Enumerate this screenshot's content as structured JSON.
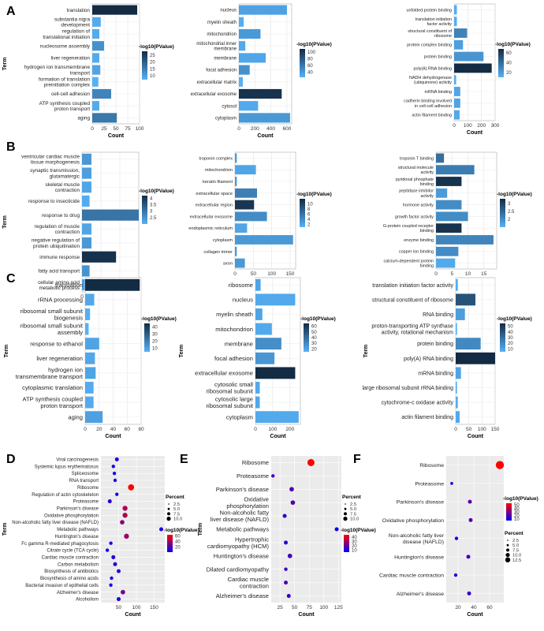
{
  "figure": {
    "panel_letters": [
      "A",
      "B",
      "C",
      "D",
      "E",
      "F"
    ]
  },
  "colors": {
    "bar_low": "#56b1f7",
    "bar_high": "#132b43",
    "dot_low": "#0000ff",
    "dot_high": "#ff0000",
    "panel_bg": "#ebebeb",
    "grid": "#ffffff"
  },
  "chart_data": [
    {
      "id": "A1",
      "panel": "A",
      "type": "bar",
      "orientation": "horizontal",
      "xlabel": "Count",
      "ylabel": "Term",
      "xlim": [
        0,
        100
      ],
      "xticks": [
        0,
        25,
        50,
        75,
        100
      ],
      "legend": {
        "title": "-log10(PValue)",
        "ticks": [
          25,
          20,
          15,
          10
        ],
        "range": [
          7,
          28
        ],
        "placement": "right"
      },
      "categories": [
        "translation",
        "substantia nigra development",
        "regulation of translational initiation",
        "nucleosome assembly",
        "liver regeneration",
        "hydrogen ion transmembrane transport",
        "formation of translation preinitiation complex",
        "cell-cell adhesion",
        "ATP synthesis coupled proton transport",
        "aging"
      ],
      "values": [
        95,
        18,
        15,
        25,
        15,
        17,
        13,
        40,
        15,
        52
      ],
      "color_values": [
        28,
        8,
        8,
        12,
        8,
        9,
        7,
        14,
        8,
        16
      ]
    },
    {
      "id": "A2",
      "panel": "A",
      "type": "bar",
      "orientation": "horizontal",
      "xlabel": "Count",
      "ylabel": "",
      "xlim": [
        0,
        660
      ],
      "xticks": [
        0,
        200,
        400,
        600
      ],
      "legend": {
        "title": "-log10(PValue)",
        "ticks": [
          100,
          80,
          60,
          40
        ],
        "range": [
          25,
          110
        ],
        "placement": "right"
      },
      "categories": [
        "nucleus",
        "myelin sheath",
        "mitochondrion",
        "mitochondrial inner membrane",
        "membrane",
        "focal adhesion",
        "extracellular matrix",
        "extracellular exosome",
        "cytosol",
        "cytoplasm"
      ],
      "values": [
        600,
        60,
        270,
        80,
        335,
        135,
        50,
        535,
        240,
        640
      ],
      "color_values": [
        35,
        28,
        40,
        30,
        32,
        45,
        25,
        105,
        30,
        40
      ]
    },
    {
      "id": "A3",
      "panel": "A",
      "type": "bar",
      "orientation": "horizontal",
      "xlabel": "Count",
      "ylabel": "",
      "xlim": [
        0,
        300
      ],
      "xticks": [
        0,
        100,
        200,
        300
      ],
      "legend": {
        "title": "-log10(PValue)",
        "ticks": [
          60,
          40,
          20
        ],
        "range": [
          10,
          68
        ],
        "placement": "right"
      },
      "categories": [
        "unfolded protein binding",
        "translation initiation factor activity",
        "structural constituent of ribosome",
        "protein complex binding",
        "protein binding",
        "poly(A) RNA binding",
        "NADH dehydrogenase (ubiquinone) activity",
        "mRNA binding",
        "cadherin binding involved in cell-cell adhesion",
        "actin filament binding"
      ],
      "values": [
        20,
        20,
        95,
        65,
        215,
        275,
        15,
        45,
        45,
        40
      ],
      "color_values": [
        12,
        12,
        30,
        18,
        22,
        68,
        12,
        15,
        16,
        14
      ]
    },
    {
      "id": "B1",
      "panel": "B",
      "type": "bar",
      "orientation": "horizontal",
      "xlabel": "Count",
      "ylabel": "Term",
      "xlim": [
        0,
        30
      ],
      "xticks": [
        0,
        10,
        20
      ],
      "legend": {
        "title": "-log10(PValue)",
        "ticks": [
          4.0,
          3.5,
          3.0,
          2.5
        ],
        "range": [
          2.0,
          4.2
        ],
        "placement": "right"
      },
      "categories": [
        "ventricular cardiac muscle tissue morphogenesis",
        "synaptic transmission, glutamatergic",
        "skeletal muscle contraction",
        "response to insecticide",
        "response to drug",
        "regulation of muscle contraction",
        "negative regulation of protein ubiquitination",
        "immune response",
        "fatty acid transport",
        "cellular amino acid metabolic process"
      ],
      "values": [
        5,
        5,
        5,
        4,
        30,
        5,
        5,
        18,
        4,
        4
      ],
      "color_values": [
        2.4,
        2.3,
        2.2,
        2.1,
        3.0,
        2.2,
        2.4,
        4.1,
        2.5,
        2.3
      ]
    },
    {
      "id": "B2",
      "panel": "B",
      "type": "bar",
      "orientation": "horizontal",
      "xlabel": "Count",
      "ylabel": "",
      "xlim": [
        0,
        165
      ],
      "xticks": [
        0,
        50,
        100,
        150
      ],
      "legend": {
        "title": "-log10(PValue)",
        "ticks": [
          10,
          8,
          6,
          4,
          2
        ],
        "range": [
          1,
          12
        ],
        "placement": "right"
      },
      "categories": [
        "troponin complex",
        "mitochondrion",
        "keratin filament",
        "extracellular space",
        "extracellular region",
        "extracellular exosome",
        "endoplasmic reticulum",
        "cytoplasm",
        "collagen trimer",
        "axon"
      ],
      "values": [
        5,
        57,
        5,
        60,
        52,
        87,
        33,
        158,
        5,
        27
      ],
      "color_values": [
        3,
        2,
        3,
        5,
        11,
        4,
        2,
        3,
        3,
        3
      ]
    },
    {
      "id": "B3",
      "panel": "B",
      "type": "bar",
      "orientation": "horizontal",
      "xlabel": "Count",
      "ylabel": "",
      "xlim": [
        0,
        19
      ],
      "xticks": [
        0,
        5,
        10,
        15
      ],
      "legend": {
        "title": "-log10(PValue)",
        "ticks": [
          3.0,
          2.5,
          2.0
        ],
        "range": [
          1.5,
          3.3
        ],
        "placement": "right"
      },
      "categories": [
        "troponin T binding",
        "structural molecule activity",
        "pyridoxal phosphate binding",
        "peptidase inhibitor activity",
        "hormone activity",
        "growth factor activity",
        "G-protein coupled receptor binding",
        "enzyme binding",
        "copper ion binding",
        "calcium-dependent protein binding"
      ],
      "values": [
        2.5,
        12,
        8,
        3.5,
        8,
        10,
        8,
        18,
        7,
        6
      ],
      "color_values": [
        2.4,
        2.2,
        3.2,
        1.8,
        2.0,
        2.0,
        3.2,
        2.1,
        2.0,
        1.6
      ]
    },
    {
      "id": "C1",
      "panel": "C",
      "type": "bar",
      "orientation": "horizontal",
      "xlabel": "Count",
      "ylabel": "Term",
      "xlim": [
        0,
        80
      ],
      "xticks": [
        0,
        20,
        40,
        60,
        80
      ],
      "legend": {
        "title": "-log10(PValue)",
        "ticks": [
          40,
          30,
          20,
          10
        ],
        "range": [
          5,
          45
        ],
        "placement": "right"
      },
      "categories": [
        "translation",
        "rRNA processing",
        "ribosomal small subunit biogenesis",
        "ribosomal small subunit assembly",
        "response to ethanol",
        "liver regeneration",
        "hydrogen ion transmembrane transport",
        "cytoplasmic translation",
        "ATP synthesis coupled proton transport",
        "aging"
      ],
      "values": [
        78,
        13,
        7,
        5,
        20,
        14,
        15,
        12,
        12,
        25
      ],
      "color_values": [
        45,
        8,
        6,
        5,
        9,
        8,
        9,
        7,
        7,
        10
      ]
    },
    {
      "id": "C2",
      "panel": "C",
      "type": "bar",
      "orientation": "horizontal",
      "xlabel": "Count",
      "ylabel": "Term",
      "xlim": [
        0,
        260
      ],
      "xticks": [
        0,
        100,
        200
      ],
      "legend": {
        "title": "-log10(PValue)",
        "ticks": [
          60,
          50,
          40,
          30,
          20
        ],
        "range": [
          15,
          65
        ],
        "placement": "right"
      },
      "categories": [
        "ribosome",
        "nucleus",
        "myelin sheath",
        "mitochondrion",
        "membrane",
        "focal adhesion",
        "extracellular exosome",
        "cytosolic small ribosomal subunit",
        "cytosolic large ribosomal subunit",
        "cytoplasm"
      ],
      "values": [
        30,
        230,
        40,
        95,
        150,
        110,
        230,
        25,
        25,
        250
      ],
      "color_values": [
        20,
        18,
        20,
        18,
        28,
        25,
        65,
        18,
        19,
        18
      ]
    },
    {
      "id": "C3",
      "panel": "C",
      "type": "bar",
      "orientation": "horizontal",
      "xlabel": "Count",
      "ylabel": "Term",
      "xlim": [
        0,
        150
      ],
      "xticks": [
        0,
        50,
        100,
        150
      ],
      "legend": {
        "title": "-log10(PValue)",
        "ticks": [
          50,
          40,
          30,
          20,
          10
        ],
        "range": [
          5,
          55
        ],
        "placement": "right"
      },
      "categories": [
        "translation initiation factor activity",
        "structural constituent of ribosome",
        "RNA binding",
        "proton-transporting ATP synthase activity, rotational mechanism",
        "protein binding",
        "poly(A) RNA binding",
        "mRNA binding",
        "large ribosomal subunit rRNA binding",
        "cytochrome-c oxidase activity",
        "actin filament binding"
      ],
      "values": [
        8,
        75,
        35,
        5,
        95,
        150,
        20,
        5,
        8,
        15
      ],
      "color_values": [
        7,
        40,
        12,
        6,
        20,
        55,
        10,
        6,
        7,
        8
      ]
    },
    {
      "id": "D",
      "panel": "D",
      "type": "scatter",
      "xlabel": "Count",
      "ylabel": "Term",
      "xlim": [
        0,
        180
      ],
      "xticks": [
        50,
        100,
        150
      ],
      "legend_size": {
        "title": "Percent",
        "ticks": [
          2.5,
          5.0,
          7.5,
          10.0
        ]
      },
      "legend_color": {
        "title": "-log10(PValue)",
        "ticks": [
          60,
          40,
          20
        ],
        "range": [
          2,
          65
        ]
      },
      "categories": [
        "Viral carcinogenesis",
        "Systemic lupus erythematosus",
        "Spliceosome",
        "RNA transport",
        "Ribosome",
        "Regulation of actin cytoskeleton",
        "Proteasome",
        "Parkinson's disease",
        "Oxidative phosphorylation",
        "Non-alcoholic fatty liver disease (NAFLD)",
        "Metabolic pathways",
        "Huntington's disease",
        "Fc gamma R-mediated phagocytosis",
        "Citrate cycle (TCA cycle)",
        "Cardiac muscle contraction",
        "Carbon metabolism",
        "Biosynthesis of antibiotics",
        "Biosynthesis of amino acids",
        "Bacterial invasion of epithelial cells",
        "Alzheimer's disease",
        "Alcoholism"
      ],
      "values": [
        45,
        35,
        38,
        40,
        85,
        45,
        25,
        68,
        68,
        60,
        170,
        72,
        28,
        18,
        35,
        40,
        50,
        30,
        28,
        62,
        50
      ],
      "sizes": [
        4,
        3,
        3,
        3,
        8,
        3,
        4,
        6,
        6,
        5,
        4,
        6,
        3,
        3,
        4,
        4,
        4,
        3,
        3,
        5,
        4
      ],
      "color_values": [
        10,
        8,
        8,
        8,
        65,
        9,
        10,
        45,
        45,
        35,
        8,
        40,
        8,
        6,
        10,
        10,
        12,
        8,
        8,
        30,
        10
      ]
    },
    {
      "id": "E",
      "panel": "E",
      "type": "scatter",
      "xlabel": "Count",
      "ylabel": "Term",
      "xlim": [
        10,
        130
      ],
      "xticks": [
        25,
        50,
        75,
        100,
        125
      ],
      "legend_size": {
        "title": "Percent",
        "ticks": [
          2.5,
          5.0,
          7.5,
          10.0
        ]
      },
      "legend_color": {
        "title": "-log10(PValue)",
        "ticks": [
          40,
          30,
          20,
          10
        ],
        "range": [
          5,
          45
        ]
      },
      "categories": [
        "Ribosome",
        "Proteasome",
        "Parkinson's disease",
        "Oxidative phosphorylation",
        "Non-alcoholic fatty liver disease (NAFLD)",
        "Metabolic pathways",
        "Hypertrophic cardiomyopathy (HCM)",
        "Huntington's disease",
        "Dilated cardiomyopathy",
        "Cardiac muscle contraction",
        "Alzheimer's disease"
      ],
      "values": [
        78,
        13,
        45,
        47,
        33,
        122,
        35,
        42,
        35,
        35,
        40
      ],
      "sizes": [
        10,
        3,
        5,
        5,
        4,
        4,
        4,
        5,
        3,
        4,
        4
      ],
      "color_values": [
        45,
        15,
        18,
        18,
        12,
        6,
        12,
        15,
        14,
        16,
        14
      ]
    },
    {
      "id": "F",
      "panel": "F",
      "type": "scatter",
      "xlabel": "Count",
      "ylabel": "",
      "xlim": [
        5,
        78
      ],
      "xticks": [
        20,
        40,
        60
      ],
      "legend_color": {
        "title": "-log10(PValue)",
        "ticks": [
          50,
          40,
          30,
          20,
          10
        ],
        "range": [
          5,
          55
        ]
      },
      "legend_size": {
        "title": "Percent",
        "ticks": [
          2.5,
          5.0,
          7.5,
          10.0,
          12.5
        ]
      },
      "categories": [
        "Ribosome",
        "Proteasome",
        "Parkinson's disease",
        "Oxidative phosphorylation",
        "Non-alcoholic fatty liver disease (NAFLD)",
        "Huntington's disease",
        "Cardiac muscle contraction",
        "Alzheimer's disease"
      ],
      "values": [
        73,
        12,
        35,
        36,
        18,
        33,
        17,
        34
      ],
      "sizes": [
        12,
        2,
        4,
        4,
        3,
        4,
        3,
        4
      ],
      "color_values": [
        55,
        12,
        22,
        22,
        10,
        18,
        12,
        16
      ]
    }
  ]
}
